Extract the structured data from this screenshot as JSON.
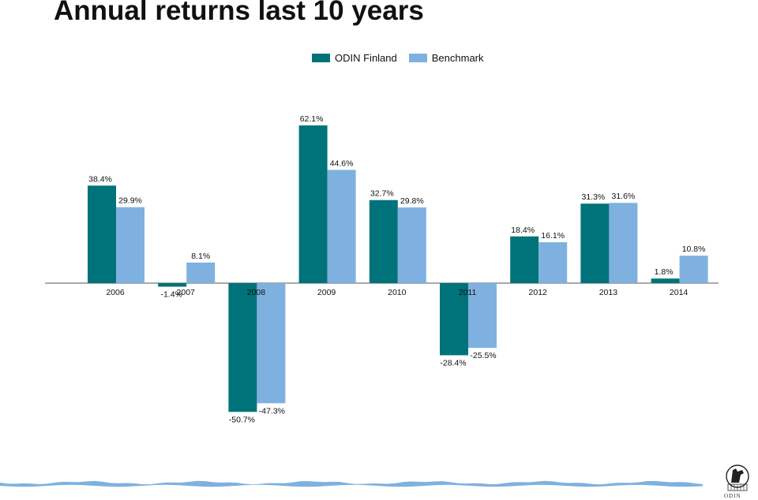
{
  "title": "Annual returns last 10 years",
  "logo_text": "ODIN",
  "colors": {
    "fund": "#00737A",
    "benchmark": "#7EB1DF",
    "wave": "#7EB1DF"
  },
  "chart_data": {
    "type": "bar",
    "title": "Annual returns last 10 years",
    "categories": [
      "2006",
      "2007",
      "2008",
      "2009",
      "2010",
      "2011",
      "2012",
      "2013",
      "2014"
    ],
    "series": [
      {
        "name": "ODIN Finland",
        "color": "#00737A",
        "values": [
          38.4,
          -1.4,
          -50.7,
          62.1,
          32.7,
          -28.4,
          18.4,
          31.3,
          1.8
        ],
        "labels": [
          "38.4%",
          "-1.4%",
          "-50.7%",
          "62.1%",
          "32.7%",
          "-28.4%",
          "18.4%",
          "31.3%",
          "1.8%"
        ]
      },
      {
        "name": "Benchmark",
        "color": "#7EB1DF",
        "values": [
          29.9,
          8.1,
          -47.3,
          44.6,
          29.8,
          -25.5,
          16.1,
          31.6,
          10.8
        ],
        "labels": [
          "29.9%",
          "8.1%",
          "-47.3%",
          "44.6%",
          "29.8%",
          "-25.5%",
          "16.1%",
          "31.6%",
          "10.8%"
        ]
      }
    ],
    "ylim": [
      -55,
      65
    ],
    "grid": false,
    "legend": "top-center",
    "xlabel": "",
    "ylabel": ""
  }
}
